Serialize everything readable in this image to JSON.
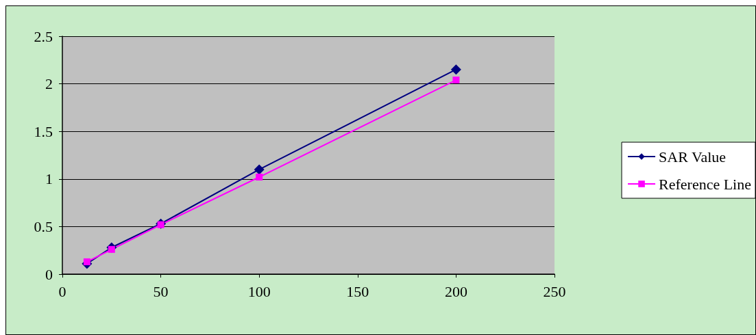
{
  "chart_data": {
    "type": "line",
    "x": [
      12.5,
      25,
      50,
      100,
      200
    ],
    "series": [
      {
        "name": "SAR Value",
        "color": "#000080",
        "values": [
          0.11,
          0.28,
          0.53,
          1.1,
          2.15
        ],
        "marker": "diamond"
      },
      {
        "name": "Reference Line",
        "color": "#ff00ff",
        "values": [
          0.13,
          0.26,
          0.52,
          1.02,
          2.04
        ],
        "marker": "square"
      }
    ],
    "xlim": [
      0,
      250
    ],
    "xticks": [
      0,
      50,
      100,
      150,
      200,
      250
    ],
    "ylim": [
      0,
      2.5
    ],
    "yticks": [
      0,
      0.5,
      1,
      1.5,
      2,
      2.5
    ],
    "grid": "y",
    "legend": "right",
    "line_style": "solid"
  }
}
